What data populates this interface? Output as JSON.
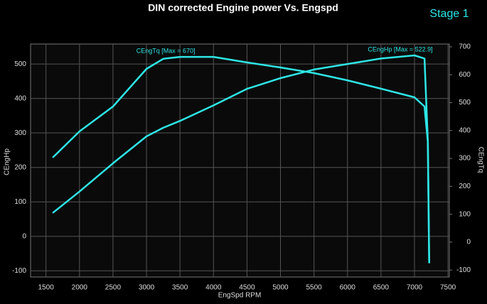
{
  "chart_data": {
    "type": "line",
    "title": "DIN corrected Engine power Vs. Engspd",
    "subtitle": "Stage 1",
    "x_label": "EngSpd RPM",
    "y_label": "CEngHp",
    "y2_label": "CEngTq",
    "x": [
      1600,
      2000,
      2500,
      3000,
      3250,
      3500,
      4000,
      4500,
      5000,
      5500,
      6000,
      6500,
      7000,
      7150,
      7200,
      7220
    ],
    "series": [
      {
        "name": "CEngHp",
        "label": "CEngHp [Max = 522.9]",
        "color": "#2ee6e6",
        "axis": "y",
        "values": [
          68,
          130,
          212,
          290,
          315,
          335,
          380,
          428,
          459,
          484,
          500,
          516,
          525,
          516,
          274,
          -78
        ]
      },
      {
        "name": "CEngTq",
        "label": "CEngTq [Max = 670]",
        "color": "#2ee6e6",
        "axis": "y2",
        "values": [
          303,
          397,
          486,
          621,
          657,
          664,
          664,
          644,
          626,
          606,
          580,
          550,
          519,
          486,
          359,
          -75
        ]
      }
    ],
    "xlim": [
      1270,
      7520
    ],
    "xticks": [
      1500,
      2000,
      2500,
      3000,
      3500,
      4000,
      4500,
      5000,
      5500,
      6000,
      6500,
      7000,
      7500
    ],
    "ylim": [
      -118,
      558
    ],
    "yticks": [
      -100,
      0,
      100,
      200,
      300,
      400,
      500
    ],
    "y2lim": [
      -125,
      710
    ],
    "y2ticks": [
      -100,
      0,
      100,
      200,
      300,
      400,
      500,
      600,
      700
    ],
    "grid": true
  }
}
